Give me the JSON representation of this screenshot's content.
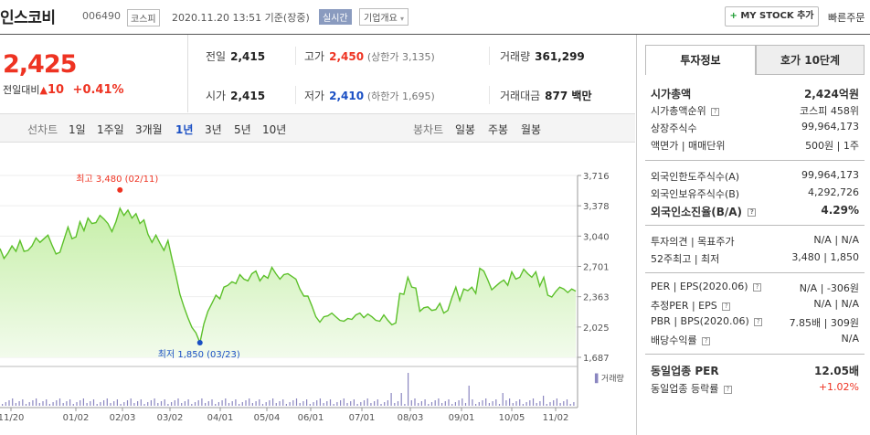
{
  "header": {
    "stock_name": "인스코비",
    "stock_code": "006490",
    "market": "코스피",
    "datetime": "2020.11.20 13:51 기준(장중)",
    "realtime": "실시간",
    "overview": "기업개요",
    "mystock_label": "MY STOCK 추가",
    "quick_order": "빠른주문"
  },
  "price": {
    "current": "2,425",
    "change_label": "전일대비",
    "change_value": "10",
    "change_pct": "+0.41%"
  },
  "summary": {
    "prev_label": "전일",
    "prev": "2,415",
    "high_label": "고가",
    "high": "2,450",
    "upper_limit": "(상한가 3,135)",
    "volume_label": "거래량",
    "volume": "361,299",
    "open_label": "시가",
    "open": "2,415",
    "low_label": "저가",
    "low": "2,410",
    "lower_limit": "(하한가 1,695)",
    "amount_label": "거래대금",
    "amount": "877 백만"
  },
  "tabs": {
    "line_label": "선차트",
    "line_periods": [
      "1일",
      "1주일",
      "3개월",
      "1년",
      "3년",
      "5년",
      "10년"
    ],
    "candle_label": "봉차트",
    "candle_periods": [
      "일봉",
      "주봉",
      "월봉"
    ]
  },
  "chart_data": {
    "type": "area",
    "y_ticks": [
      "3,716",
      "3,378",
      "3,040",
      "2,701",
      "2,363",
      "2,025",
      "1,687"
    ],
    "ylim": [
      1687,
      3716
    ],
    "x_ticks": [
      "11/20",
      "01/02",
      "02/03",
      "03/02",
      "04/01",
      "05/04",
      "06/01",
      "07/01",
      "08/03",
      "09/01",
      "10/05",
      "11/02"
    ],
    "max_label": "최고 3,480 (02/11)",
    "min_label": "최저 1,850 (03/23)",
    "volume_label": "거래량",
    "line_color": "#5cc02a",
    "values": [
      2900,
      2790,
      2850,
      2930,
      2870,
      2990,
      2870,
      2880,
      2930,
      3020,
      2970,
      3010,
      3050,
      2940,
      2840,
      2860,
      3000,
      3140,
      3010,
      3030,
      3200,
      3100,
      3240,
      3180,
      3190,
      3270,
      3230,
      3180,
      3090,
      3200,
      3350,
      3270,
      3330,
      3240,
      3290,
      3180,
      3220,
      3060,
      2970,
      3050,
      2960,
      2880,
      2990,
      2790,
      2600,
      2390,
      2250,
      2130,
      2020,
      1960,
      1850,
      2060,
      2200,
      2290,
      2380,
      2340,
      2470,
      2490,
      2530,
      2510,
      2610,
      2560,
      2540,
      2620,
      2650,
      2540,
      2600,
      2570,
      2690,
      2620,
      2560,
      2610,
      2620,
      2590,
      2560,
      2450,
      2370,
      2370,
      2260,
      2140,
      2080,
      2140,
      2150,
      2180,
      2140,
      2100,
      2090,
      2120,
      2110,
      2160,
      2180,
      2130,
      2170,
      2140,
      2100,
      2090,
      2160,
      2100,
      2050,
      2070,
      2400,
      2390,
      2580,
      2470,
      2460,
      2200,
      2240,
      2250,
      2210,
      2220,
      2290,
      2180,
      2210,
      2350,
      2470,
      2320,
      2450,
      2430,
      2470,
      2400,
      2680,
      2650,
      2550,
      2440,
      2480,
      2520,
      2550,
      2490,
      2640,
      2560,
      2580,
      2670,
      2620,
      2580,
      2640,
      2480,
      2580,
      2380,
      2360,
      2420,
      2470,
      2450,
      2410,
      2450,
      2425
    ]
  },
  "right_panel": {
    "tab_active": "투자정보",
    "tab_other": "호가 10단계",
    "rows1": [
      {
        "label": "시가총액",
        "value": "2,424억원"
      },
      {
        "label": "시가총액순위",
        "value": "코스피 458위"
      },
      {
        "label": "상장주식수",
        "value": "99,964,173"
      },
      {
        "label": "액면가 | 매매단위",
        "value": "500원 | 1주"
      }
    ],
    "rows2": [
      {
        "label": "외국인한도주식수(A)",
        "value": "99,964,173"
      },
      {
        "label": "외국인보유주식수(B)",
        "value": "4,292,726"
      },
      {
        "label": "외국인소진율(B/A)",
        "value": "4.29%"
      }
    ],
    "rows3": [
      {
        "label": "투자의견 | 목표주가",
        "value": "N/A | N/A"
      },
      {
        "label": "52주최고 | 최저",
        "value": "3,480 | 1,850"
      }
    ],
    "rows4": [
      {
        "label": "PER | EPS(2020.06)",
        "value": "N/A | -306원"
      },
      {
        "label": "추정PER | EPS",
        "value": "N/A | N/A"
      },
      {
        "label": "PBR | BPS(2020.06)",
        "value": "7.85배 | 309원"
      },
      {
        "label": "배당수익률",
        "value": "N/A"
      }
    ],
    "rows5": [
      {
        "label": "동일업종 PER",
        "value": "12.05배"
      },
      {
        "label": "동일업종 등락률",
        "value": "+1.02%"
      }
    ]
  }
}
